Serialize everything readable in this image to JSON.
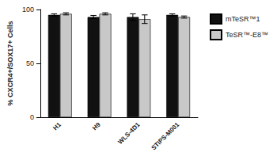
{
  "chart_data": {
    "type": "bar",
    "y_label": "% CXCR4+/SOX17+ Cells",
    "categories": [
      "H1",
      "H9",
      "WLS-4D1",
      "STIPS-M001"
    ],
    "series": [
      {
        "name": "mTeSR™1",
        "color": "#111111",
        "values": [
          95,
          93,
          93,
          95
        ],
        "errors": [
          1,
          1.5,
          3,
          1
        ]
      },
      {
        "name": "TeSR™-E8™",
        "color": "#c8c8c8",
        "values": [
          96,
          96,
          91,
          93
        ],
        "errors": [
          1,
          1,
          4,
          1
        ]
      }
    ],
    "ylim": [
      0,
      100
    ],
    "yticks": [
      0,
      50,
      100
    ],
    "grid": false,
    "legend": "right"
  }
}
